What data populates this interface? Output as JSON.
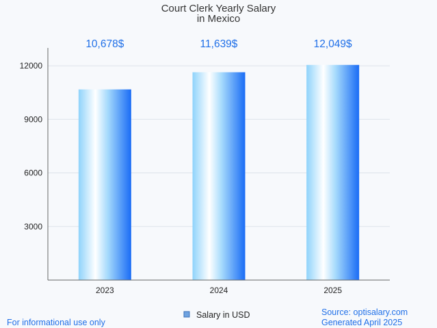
{
  "chart_data": {
    "type": "bar",
    "title_lines": [
      "Court Clerk Yearly Salary",
      "in Mexico"
    ],
    "categories": [
      "2023",
      "2024",
      "2025"
    ],
    "series": [
      {
        "name": "Salary in USD",
        "values": [
          10678,
          11639,
          12049
        ]
      }
    ],
    "data_labels": [
      "10,678$",
      "11,639$",
      "12,049$"
    ],
    "yticks": [
      3000,
      6000,
      9000,
      12000
    ],
    "ylim": [
      0,
      13000
    ],
    "grid": true,
    "legend_position": "bottom-center",
    "colors": {
      "bar_light": "#ffffff",
      "bar_mid": "#8fd3fb",
      "bar_dark": "#1a6cf5",
      "label": "#1f6fe8"
    }
  },
  "footer": {
    "left": "For informational use only",
    "source": "Source: optisalary.com",
    "generated": "Generated April 2025"
  }
}
